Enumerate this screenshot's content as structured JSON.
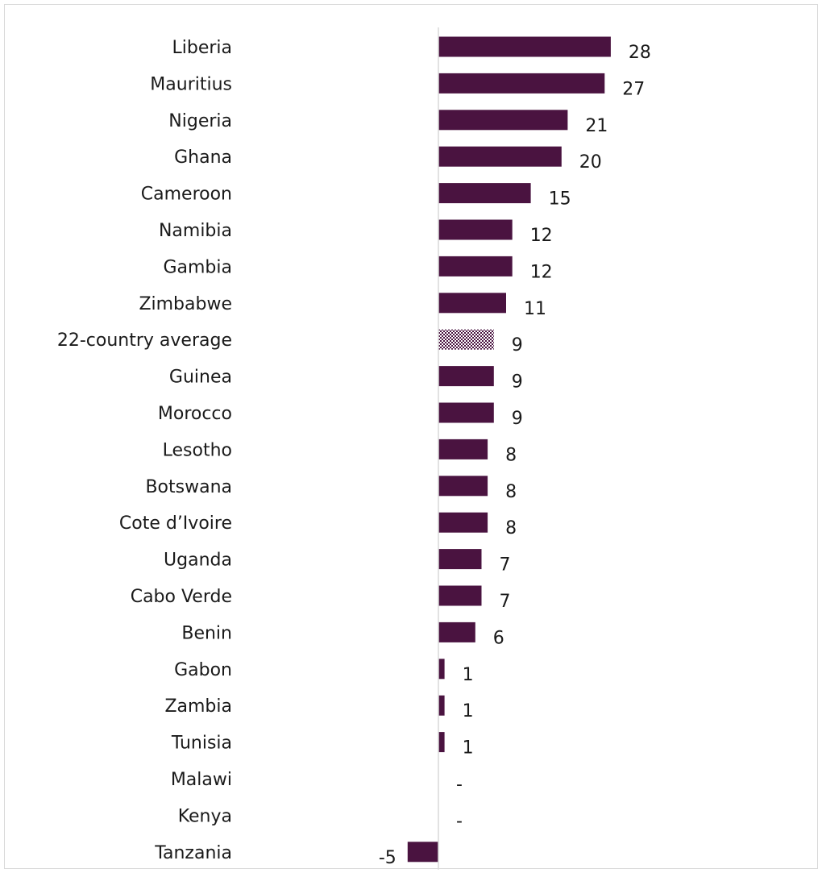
{
  "colors": {
    "bar": "#4a1340",
    "average_pattern_dark": "#4a1340",
    "average_pattern_light": "#ffffff",
    "axis": "#d9d9d9",
    "text": "#1a1a1a"
  },
  "chart_data": {
    "type": "bar",
    "orientation": "horizontal",
    "title": "",
    "xlabel": "",
    "ylabel": "",
    "grid": false,
    "legend": "none",
    "xlim": [
      -5,
      28
    ],
    "categories": [
      "Liberia",
      "Mauritius",
      "Nigeria",
      "Ghana",
      "Cameroon",
      "Namibia",
      "Gambia",
      "Zimbabwe",
      "22-country average",
      "Guinea",
      "Morocco",
      "Lesotho",
      "Botswana",
      "Cote d’Ivoire",
      "Uganda",
      "Cabo Verde",
      "Benin",
      "Gabon",
      "Zambia",
      "Tunisia",
      "Malawi",
      "Kenya",
      "Tanzania"
    ],
    "values": [
      28,
      27,
      21,
      20,
      15,
      12,
      12,
      11,
      9,
      9,
      9,
      8,
      8,
      8,
      7,
      7,
      6,
      1,
      1,
      1,
      0,
      0,
      -5
    ],
    "data_labels": [
      "28",
      "27",
      "21",
      "20",
      "15",
      "12",
      "12",
      "11",
      "9",
      "9",
      "9",
      "8",
      "8",
      "8",
      "7",
      "7",
      "6",
      "1",
      "1",
      "1",
      "-",
      "-",
      "-5"
    ],
    "highlighted_category": "22-country average",
    "highlight_style": "checkered-pattern"
  }
}
